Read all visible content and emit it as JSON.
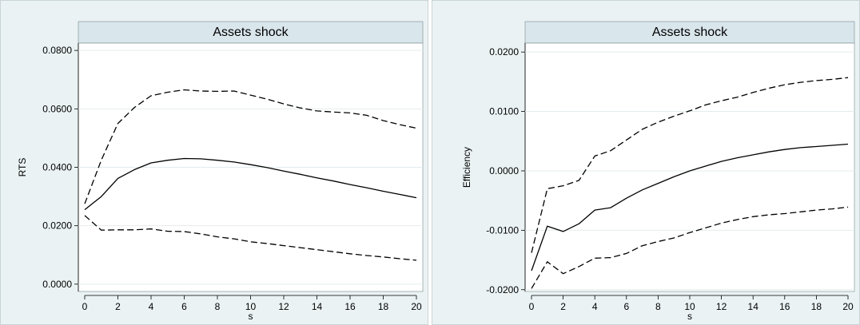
{
  "chart_data": [
    {
      "type": "line",
      "title": "Assets shock",
      "xlabel": "s",
      "ylabel": "RTS",
      "x": [
        0,
        1,
        2,
        3,
        4,
        5,
        6,
        7,
        8,
        9,
        10,
        11,
        12,
        13,
        14,
        15,
        16,
        17,
        18,
        19,
        20
      ],
      "xticks": [
        "0",
        "2",
        "4",
        "6",
        "8",
        "10",
        "12",
        "14",
        "16",
        "18",
        "20"
      ],
      "xlim": [
        0,
        20
      ],
      "yticks": [
        "0.0000",
        "0.0200",
        "0.0400",
        "0.0600",
        "0.0800"
      ],
      "ylim": [
        -0.0025,
        0.0825
      ],
      "grid": "horizontal",
      "series": [
        {
          "role": "estimate",
          "style": "solid",
          "values": [
            0.0255,
            0.03,
            0.0362,
            0.0392,
            0.0415,
            0.0424,
            0.043,
            0.0429,
            0.0424,
            0.0418,
            0.0409,
            0.0399,
            0.0387,
            0.0376,
            0.0364,
            0.0353,
            0.0341,
            0.033,
            0.0318,
            0.0307,
            0.0296
          ]
        },
        {
          "role": "upper",
          "style": "dashed",
          "values": [
            0.0275,
            0.0425,
            0.055,
            0.0605,
            0.0645,
            0.0657,
            0.0665,
            0.0661,
            0.066,
            0.0661,
            0.0647,
            0.0633,
            0.0617,
            0.0603,
            0.0593,
            0.0589,
            0.0586,
            0.0578,
            0.056,
            0.0546,
            0.0534
          ]
        },
        {
          "role": "lower",
          "style": "dashed",
          "values": [
            0.0235,
            0.0185,
            0.0186,
            0.0186,
            0.0189,
            0.0181,
            0.018,
            0.0172,
            0.0162,
            0.0155,
            0.0145,
            0.0139,
            0.0132,
            0.0125,
            0.0118,
            0.0111,
            0.0104,
            0.0098,
            0.0093,
            0.0087,
            0.0082
          ]
        }
      ]
    },
    {
      "type": "line",
      "title": "Assets shock",
      "xlabel": "s",
      "ylabel": "Efficiency",
      "x": [
        0,
        1,
        2,
        3,
        4,
        5,
        6,
        7,
        8,
        9,
        10,
        11,
        12,
        13,
        14,
        15,
        16,
        17,
        18,
        19,
        20
      ],
      "xticks": [
        "0",
        "2",
        "4",
        "6",
        "8",
        "10",
        "12",
        "14",
        "16",
        "18",
        "20"
      ],
      "xlim": [
        0,
        20
      ],
      "yticks": [
        "-0.0200",
        "-0.0100",
        "0.0000",
        "0.0100",
        "0.0200"
      ],
      "ylim": [
        -0.0203,
        0.0215
      ],
      "grid": "horizontal",
      "series": [
        {
          "role": "estimate",
          "style": "solid",
          "values": [
            -0.0168,
            -0.0093,
            -0.0102,
            -0.0089,
            -0.0066,
            -0.0062,
            -0.0046,
            -0.0032,
            -0.0021,
            -0.001,
            0.0,
            0.0008,
            0.0016,
            0.0022,
            0.0027,
            0.0032,
            0.0036,
            0.0039,
            0.0041,
            0.0043,
            0.0045
          ]
        },
        {
          "role": "upper",
          "style": "dashed",
          "values": [
            -0.0138,
            -0.003,
            -0.0025,
            -0.0016,
            0.0025,
            0.0034,
            0.0052,
            0.007,
            0.0082,
            0.0092,
            0.0101,
            0.0111,
            0.0118,
            0.0124,
            0.0132,
            0.0139,
            0.0145,
            0.0149,
            0.0152,
            0.0154,
            0.0157
          ]
        },
        {
          "role": "lower",
          "style": "dashed",
          "values": [
            -0.0198,
            -0.0153,
            -0.0173,
            -0.0161,
            -0.0147,
            -0.0146,
            -0.0139,
            -0.0126,
            -0.0119,
            -0.0113,
            -0.0104,
            -0.0096,
            -0.0088,
            -0.0082,
            -0.0077,
            -0.0074,
            -0.0072,
            -0.0069,
            -0.0066,
            -0.0064,
            -0.0061
          ]
        }
      ]
    }
  ]
}
